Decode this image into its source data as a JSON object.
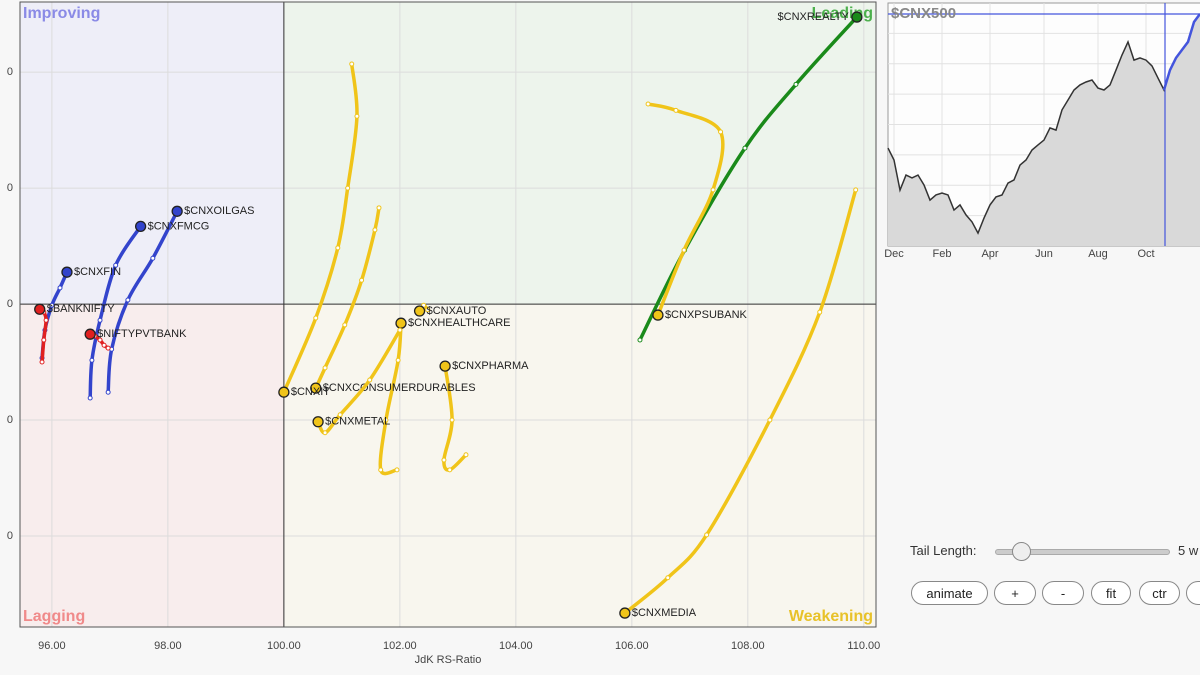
{
  "chart_data": [
    {
      "type": "scatter",
      "x_label": "JdK RS-Ratio",
      "quadrants": [
        "Improving",
        "Leading",
        "Lagging",
        "Weakening"
      ],
      "center": [
        100,
        100
      ],
      "xlim": [
        95.45,
        110.21
      ],
      "ylim": [
        94.43,
        105.21
      ],
      "xticks": [
        {
          "value": 96,
          "label": "96.00"
        },
        {
          "value": 98,
          "label": "98.00"
        },
        {
          "value": 100,
          "label": "100.00"
        },
        {
          "value": 102,
          "label": "102.00"
        },
        {
          "value": 104,
          "label": "104.00"
        },
        {
          "value": 106,
          "label": "106.00"
        },
        {
          "value": 108,
          "label": "108.00"
        },
        {
          "value": 110,
          "label": "110.00"
        }
      ],
      "yticks": [
        {
          "value": 104,
          "label": "0"
        },
        {
          "value": 102,
          "label": "0"
        },
        {
          "value": 100,
          "label": "0"
        },
        {
          "value": 98,
          "label": "0"
        },
        {
          "value": 96,
          "label": "0"
        }
      ],
      "grid": true,
      "series": [
        {
          "name": "$CNXREALTY",
          "color": "#1a8a1a",
          "x": [
            106.14,
            106.91,
            107.95,
            108.83,
            109.88
          ],
          "values": [
            99.38,
            100.93,
            102.69,
            103.79,
            104.95
          ]
        },
        {
          "name": "$CNXOILGAS",
          "color": "#3344cc",
          "x": [
            96.97,
            97.03,
            97.31,
            97.74,
            98.16
          ],
          "values": [
            98.48,
            99.22,
            100.07,
            100.79,
            101.6
          ]
        },
        {
          "name": "$CNXFMCG",
          "color": "#3344cc",
          "x": [
            96.66,
            96.69,
            96.83,
            97.1,
            97.53
          ],
          "values": [
            98.38,
            99.03,
            99.72,
            100.67,
            101.34
          ]
        },
        {
          "name": "$CNXFIN",
          "color": "#3344cc",
          "x": [
            95.83,
            95.88,
            96.0,
            96.14,
            96.26
          ],
          "values": [
            99.07,
            99.55,
            99.98,
            100.28,
            100.55
          ]
        },
        {
          "name": "$BANKNIFTY",
          "color": "#e02020",
          "x": [
            95.83,
            95.86,
            95.9,
            95.86,
            95.79
          ],
          "values": [
            99.0,
            99.38,
            99.72,
            99.86,
            99.91
          ]
        },
        {
          "name": "$NIFTYPVTBANK",
          "color": "#e02020",
          "x": [
            96.97,
            96.9,
            96.83,
            96.74,
            96.66
          ],
          "values": [
            99.24,
            99.29,
            99.38,
            99.45,
            99.48
          ]
        },
        {
          "name": "$CNXPSUBANK",
          "color": "#f0c419",
          "x": [
            106.28,
            106.76,
            107.53,
            107.4,
            106.9,
            106.45
          ],
          "values": [
            103.45,
            103.34,
            102.97,
            101.97,
            100.93,
            99.81
          ]
        },
        {
          "name": "$CNXAUTO",
          "color": "#f0c419",
          "x": [
            102.48,
            102.41,
            102.34
          ],
          "values": [
            99.9,
            99.98,
            99.88
          ]
        },
        {
          "name": "$CNXHEALTHCARE",
          "color": "#f0c419",
          "x": [
            101.95,
            101.67,
            101.76,
            101.97,
            102.02
          ],
          "values": [
            97.14,
            97.14,
            98.0,
            99.03,
            99.67
          ]
        },
        {
          "name": "$CNXPHARMA",
          "color": "#f0c419",
          "x": [
            103.14,
            102.86,
            102.76,
            102.9,
            102.78
          ],
          "values": [
            97.4,
            97.14,
            97.31,
            98.0,
            98.93
          ]
        },
        {
          "name": "$CNXCONSUMERDURABLES",
          "color": "#f0c419",
          "x": [
            101.64,
            101.57,
            101.34,
            101.05,
            100.71,
            100.55
          ],
          "values": [
            101.66,
            101.28,
            100.41,
            99.64,
            98.9,
            98.55
          ]
        },
        {
          "name": "$CNXIT",
          "color": "#f0c419",
          "x": [
            101.17,
            101.26,
            101.1,
            100.93,
            100.55,
            100.0
          ],
          "values": [
            104.14,
            103.24,
            102.0,
            100.97,
            99.76,
            98.48
          ]
        },
        {
          "name": "$CNXMETAL",
          "color": "#f0c419",
          "x": [
            102.0,
            101.48,
            100.97,
            100.71,
            100.59
          ],
          "values": [
            99.55,
            98.69,
            98.09,
            97.78,
            97.97
          ]
        },
        {
          "name": "$CNXMEDIA",
          "color": "#f0c419",
          "x": [
            109.86,
            109.24,
            108.38,
            107.29,
            106.62,
            105.88
          ],
          "values": [
            101.97,
            99.86,
            98.0,
            96.02,
            95.28,
            94.67
          ]
        }
      ]
    },
    {
      "type": "line",
      "title": "$CNX500",
      "color": "#333333",
      "highlight_color": "#4455dd",
      "ylim": [
        0,
        100
      ],
      "categories": [
        null,
        "Dec",
        null,
        null,
        null,
        null,
        null,
        null,
        null,
        "Feb",
        null,
        null,
        null,
        null,
        null,
        null,
        null,
        "Apr",
        null,
        null,
        null,
        null,
        null,
        null,
        null,
        null,
        "Jun",
        null,
        null,
        null,
        null,
        null,
        null,
        null,
        null,
        "Aug",
        null,
        null,
        null,
        null,
        null,
        null,
        null,
        "Oct",
        null,
        null,
        null,
        null,
        null,
        null,
        null,
        null,
        null
      ],
      "values": [
        40.3,
        35.4,
        23.0,
        29.2,
        28.0,
        29.2,
        25.1,
        18.9,
        21.0,
        21.8,
        21.0,
        14.8,
        16.9,
        12.8,
        9.9,
        5.3,
        11.5,
        16.9,
        20.2,
        21.0,
        25.9,
        27.2,
        33.3,
        35.4,
        39.5,
        41.6,
        43.6,
        48.6,
        47.7,
        56.0,
        60.1,
        64.2,
        66.3,
        67.5,
        68.3,
        65.0,
        64.2,
        66.3,
        72.4,
        78.6,
        84.0,
        76.5,
        77.4,
        76.5,
        74.1,
        69.1,
        64.2,
        72.4,
        77.4,
        80.7,
        84.0,
        92.2,
        95.5
      ]
    }
  ],
  "controls": {
    "tail_length_label": "Tail Length:",
    "tail_length_value": "5 w",
    "buttons": [
      "animate",
      "+",
      "-",
      "fit",
      "ctr",
      "r"
    ]
  }
}
